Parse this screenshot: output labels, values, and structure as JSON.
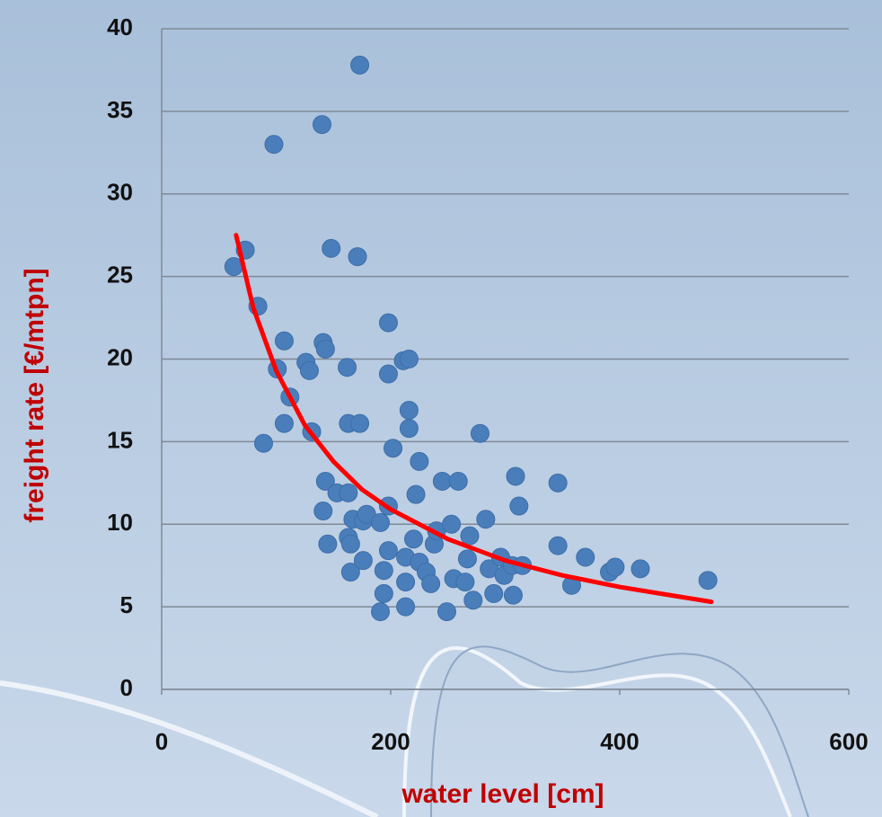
{
  "chart_data": {
    "type": "scatter",
    "x_label": "water level   [cm]",
    "y_label": "freight rate  [€/mtpn]",
    "xlim": [
      0,
      600
    ],
    "xticks": [
      0,
      200,
      400,
      600
    ],
    "ylim": [
      0,
      40
    ],
    "yticks": [
      0,
      5,
      10,
      15,
      20,
      25,
      30,
      35,
      40
    ],
    "grid": true,
    "points": {
      "color": "#4a7ebb",
      "x": [
        63,
        73,
        84,
        89,
        98,
        101,
        107,
        107,
        112,
        126,
        129,
        131,
        140,
        141,
        143,
        148,
        141,
        145,
        143,
        153,
        162,
        163,
        173,
        171,
        173,
        163,
        165,
        165,
        167,
        176,
        176,
        179,
        163,
        191,
        198,
        198,
        198,
        202,
        194,
        194,
        191,
        198,
        211,
        216,
        216,
        216,
        222,
        225,
        213,
        213,
        213,
        220,
        225,
        231,
        235,
        238,
        240,
        245,
        249,
        253,
        259,
        255,
        265,
        267,
        269,
        272,
        278,
        283,
        286,
        290,
        296,
        299,
        307,
        306,
        309,
        312,
        315,
        346,
        346,
        358,
        370,
        391,
        396,
        418,
        477
      ],
      "y": [
        25.6,
        26.6,
        23.2,
        14.9,
        33.0,
        19.4,
        21.1,
        16.1,
        17.7,
        19.8,
        19.3,
        15.6,
        34.2,
        21.0,
        20.6,
        26.7,
        10.8,
        8.8,
        12.6,
        11.9,
        19.5,
        16.1,
        16.1,
        26.2,
        37.8,
        9.2,
        8.8,
        7.1,
        10.3,
        10.2,
        7.8,
        10.6,
        11.9,
        10.1,
        11.1,
        19.1,
        22.2,
        14.6,
        7.2,
        5.8,
        4.7,
        8.4,
        19.9,
        20.0,
        16.9,
        15.8,
        11.8,
        13.8,
        5.0,
        6.5,
        8.0,
        9.1,
        7.7,
        7.1,
        6.4,
        8.8,
        9.6,
        12.6,
        4.7,
        10.0,
        12.6,
        6.7,
        6.5,
        7.9,
        9.3,
        5.4,
        15.5,
        10.3,
        7.3,
        5.8,
        8.0,
        6.9,
        5.7,
        7.5,
        12.9,
        11.1,
        7.5,
        8.7,
        12.5,
        6.3,
        8.0,
        7.1,
        7.4,
        7.3,
        6.6
      ]
    },
    "trend_line": {
      "color": "#ff0000",
      "x": [
        65,
        80,
        100,
        125,
        150,
        175,
        200,
        250,
        300,
        350,
        400,
        480
      ],
      "y": [
        27.5,
        23.1,
        19.3,
        16.0,
        13.8,
        12.1,
        10.9,
        9.1,
        7.8,
        6.9,
        6.2,
        5.3
      ]
    }
  }
}
